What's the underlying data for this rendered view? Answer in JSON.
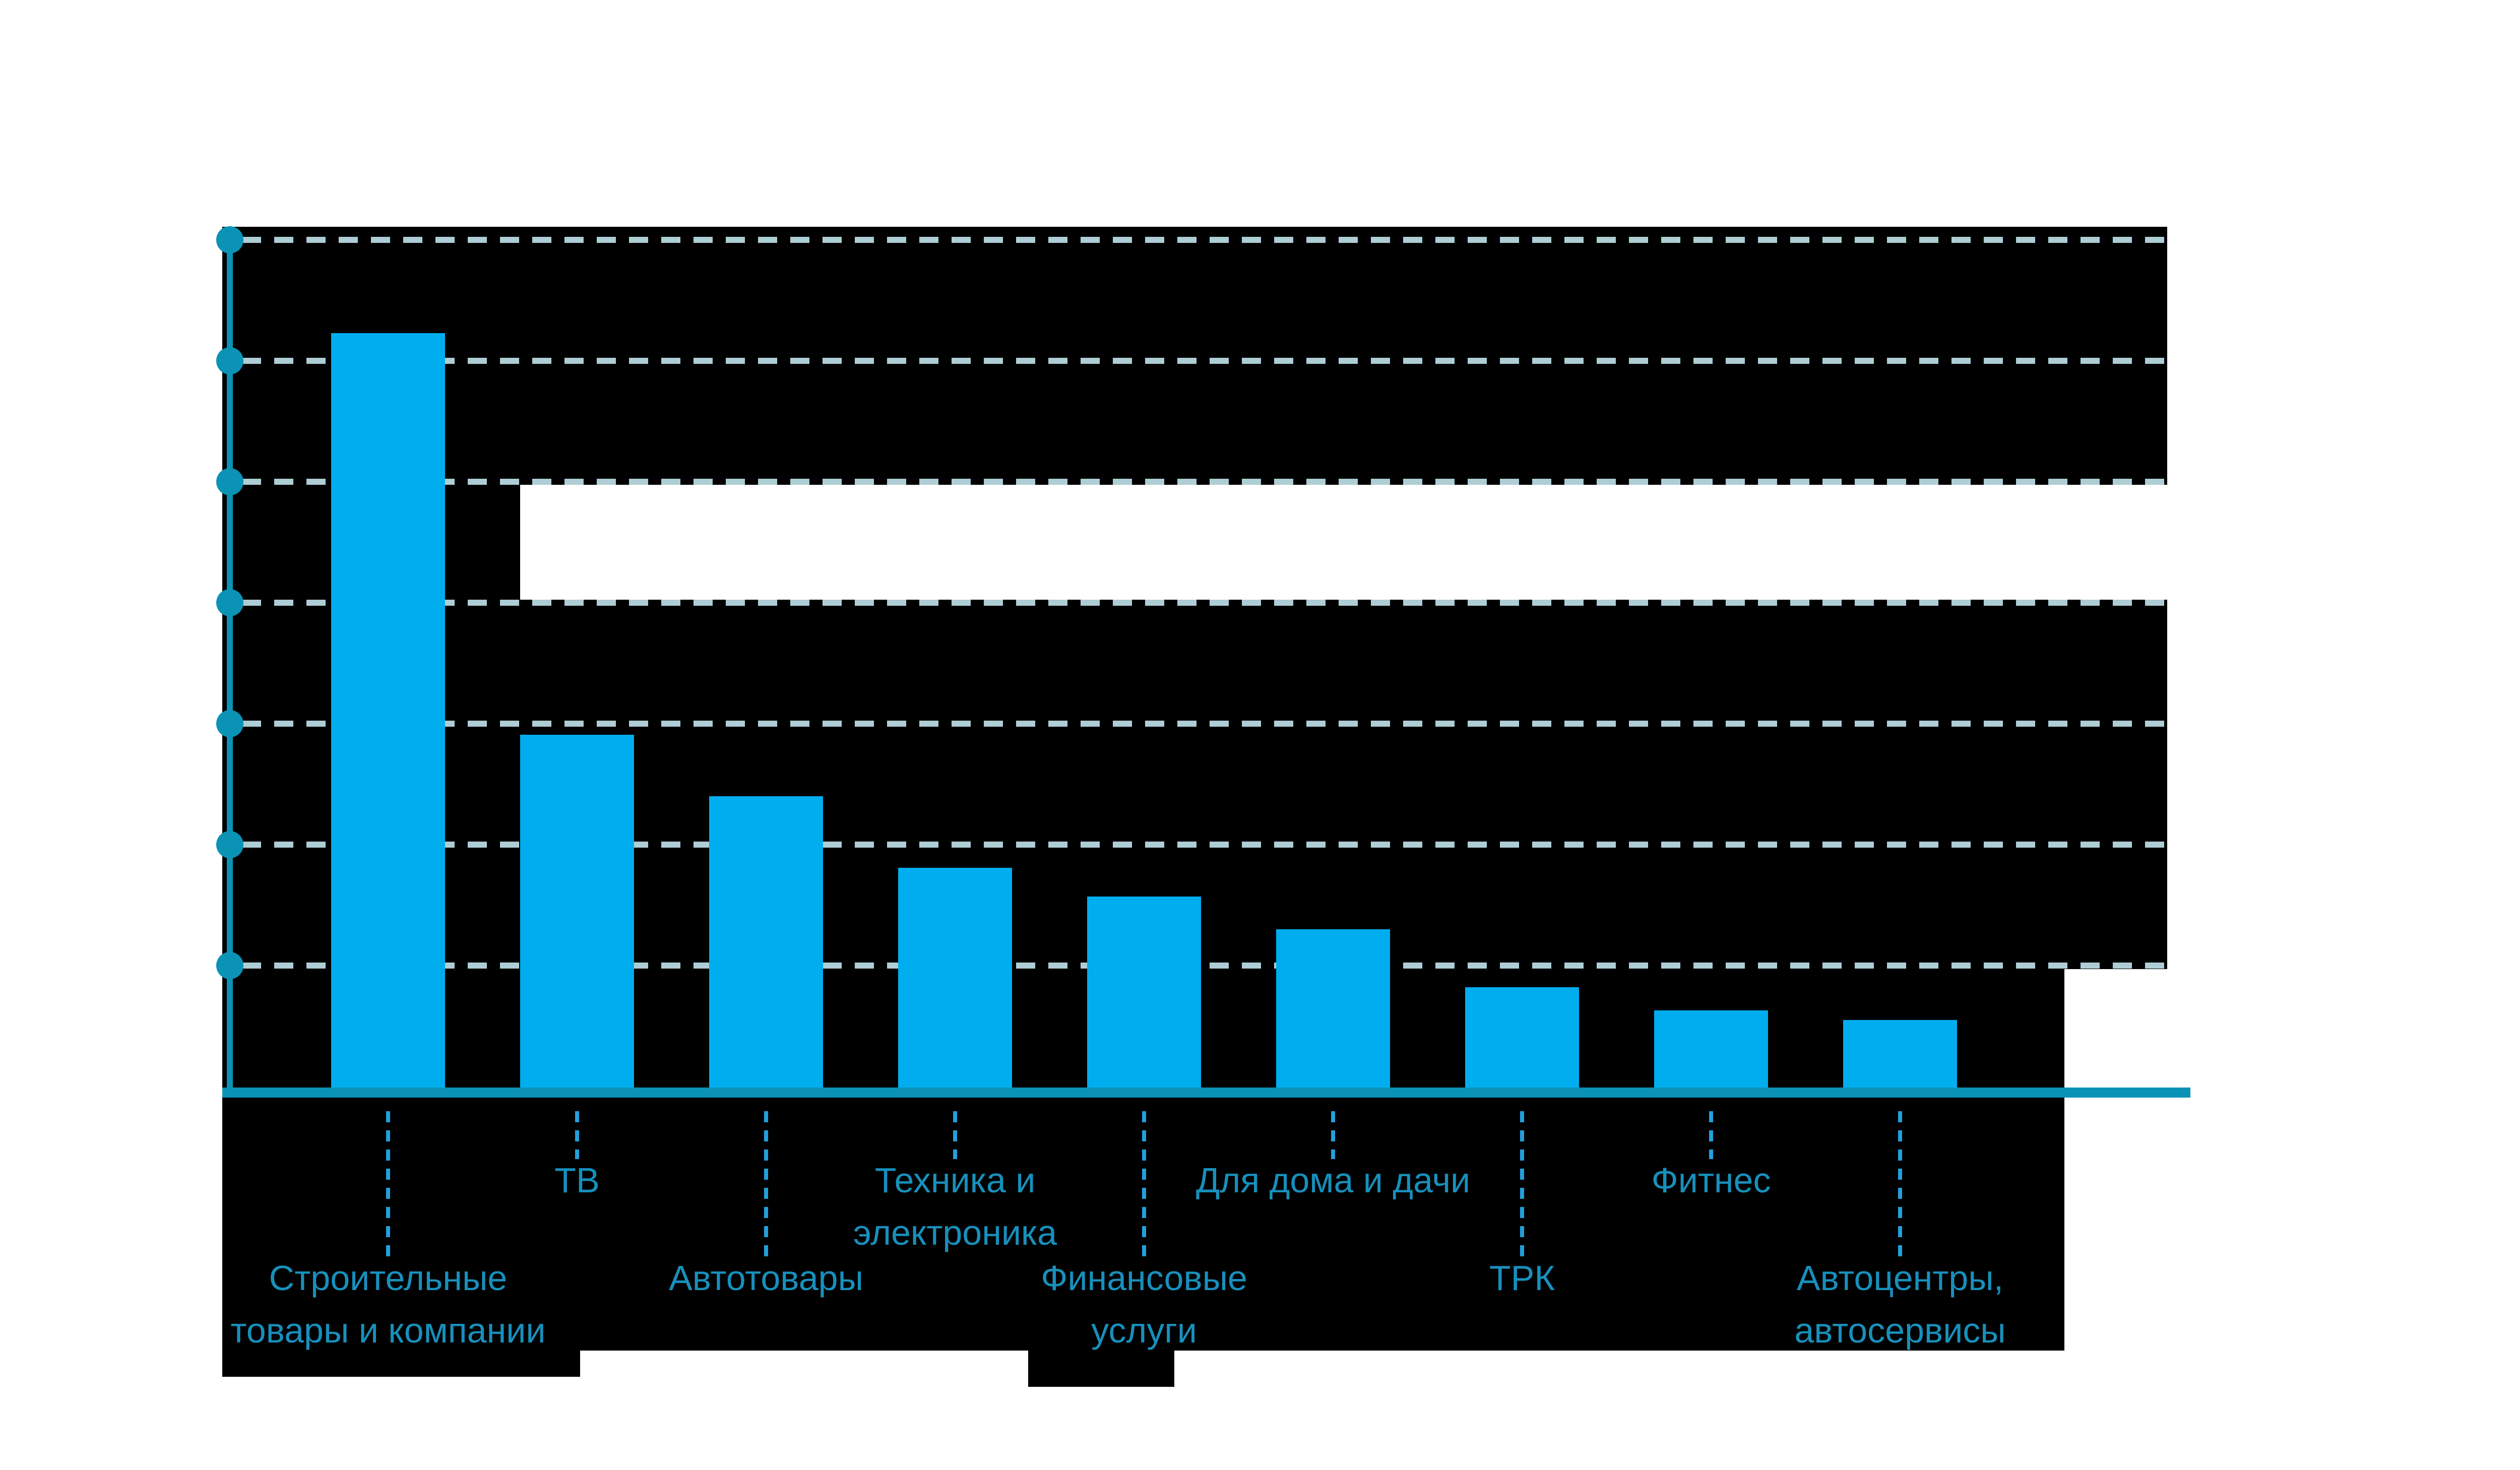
{
  "chart_data": {
    "type": "bar",
    "title": "",
    "subtitle": "",
    "categories": [
      "Строительные товары и компании",
      "ТВ",
      "Автотовары",
      "Техника и электроника",
      "Финансовые услуги",
      "Для дома и дачи",
      "ТРК",
      "Фитнес",
      "Автоцентры, автосервисы"
    ],
    "label_lines": [
      [
        "Строительные",
        "товары и компании"
      ],
      [
        "ТВ"
      ],
      [
        "Автотовары"
      ],
      [
        "Техника и",
        "электроника"
      ],
      [
        "Финансовые",
        "услуги"
      ],
      [
        "Для дома и дачи"
      ],
      [
        "ТРК"
      ],
      [
        "Фитнес"
      ],
      [
        "Автоцентры,",
        "автосервисы"
      ]
    ],
    "label_row": [
      2,
      1,
      2,
      1,
      2,
      1,
      2,
      1,
      2
    ],
    "values": [
      6.28,
      2.96,
      2.45,
      1.86,
      1.62,
      1.35,
      0.87,
      0.68,
      0.6
    ],
    "xlabel": "",
    "ylabel": "",
    "ylim": [
      0,
      7.5
    ],
    "y_axis": {
      "tick_labels_visible": false,
      "gridline_values": [
        1.05,
        2.05,
        3.05,
        4.05,
        5.05,
        6.05,
        7.05
      ],
      "grid_style": "dashed"
    },
    "legend": null,
    "note": "Tick labels, data value labels and title areas are covered by solid black blocks; bar values estimated in gridline units."
  },
  "colors": {
    "background": "#ffffff",
    "redaction_block": "#000000",
    "bar_fill": "#00aeef",
    "axis_teal": "#0a93b5",
    "gridline_dash": "#aecdd5",
    "leader_dash": "#22a0dc",
    "label_text": "#1790bc"
  }
}
